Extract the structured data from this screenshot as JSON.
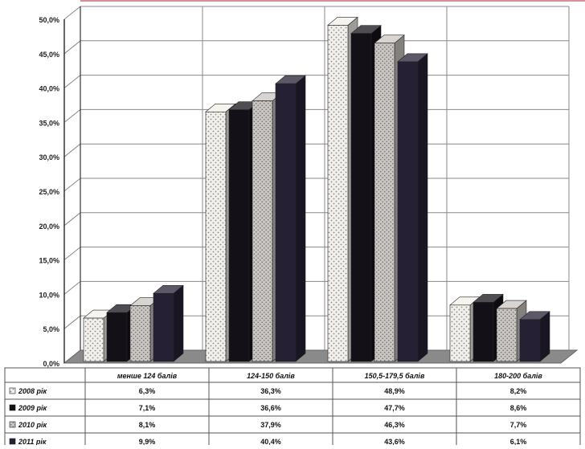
{
  "chart_data": {
    "type": "bar",
    "categories": [
      "менше 124 балів",
      "124-150 балів",
      "150,5-179,5 балів",
      "180-200 балів"
    ],
    "series": [
      {
        "name": "2008 рік",
        "values": [
          6.3,
          36.3,
          48.9,
          8.2
        ],
        "labels": [
          "6,3%",
          "36,3%",
          "48,9%",
          "8,2%"
        ],
        "color": "#f2f0ea",
        "pattern": "dots"
      },
      {
        "name": "2009 рік",
        "values": [
          7.1,
          36.6,
          47.7,
          8.6
        ],
        "labels": [
          "7,1%",
          "36,6%",
          "47,7%",
          "8,6%"
        ],
        "color": "#141018",
        "pattern": "none"
      },
      {
        "name": "2010 рік",
        "values": [
          8.1,
          37.9,
          46.3,
          7.7
        ],
        "labels": [
          "8,1%",
          "37,9%",
          "46,3%",
          "7,7%"
        ],
        "color": "#c9c6c2",
        "pattern": "dots"
      },
      {
        "name": "2011 рік",
        "values": [
          9.9,
          40.4,
          43.6,
          6.1
        ],
        "labels": [
          "9,9%",
          "40,4%",
          "43,6%",
          "6,1%"
        ],
        "color": "#262034",
        "pattern": "none"
      }
    ],
    "ylim": [
      0,
      50
    ],
    "yticks": [
      0,
      5,
      10,
      15,
      20,
      25,
      30,
      35,
      40,
      45,
      50
    ],
    "ytick_labels": [
      "0,0%",
      "5,0%",
      "10,0%",
      "15,0%",
      "20,0%",
      "25,0%",
      "30,0%",
      "35,0%",
      "40,0%",
      "45,0%",
      "50,0%"
    ],
    "grid": true,
    "legend": "data-table-below",
    "title": "",
    "xlabel": "",
    "ylabel": ""
  },
  "colors": {
    "grid": "#888888",
    "floor": "#8a8a8a",
    "table_border": "#555555",
    "accent_line": "#b02030"
  }
}
